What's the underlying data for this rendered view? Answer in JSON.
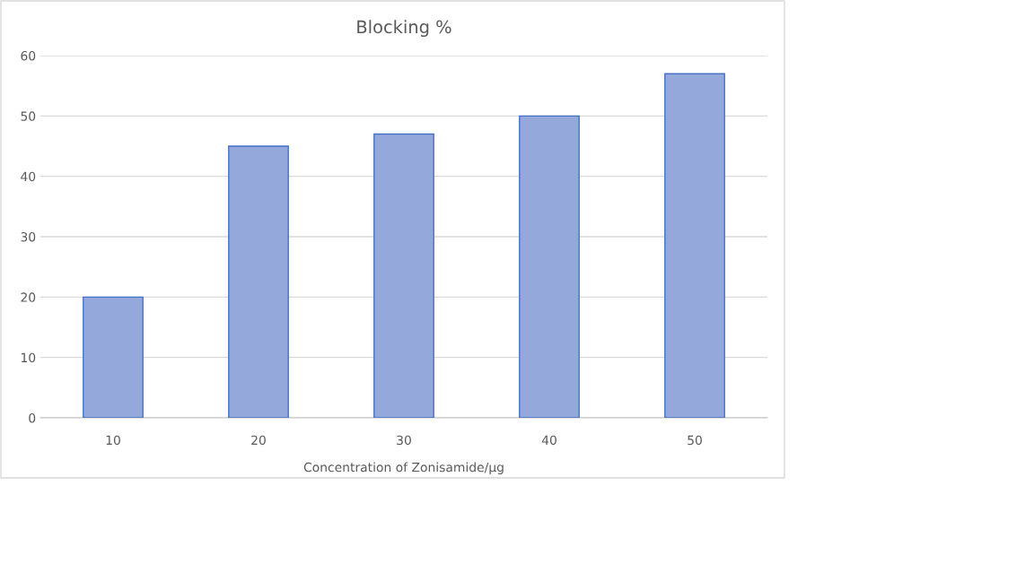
{
  "chart_data": {
    "type": "bar",
    "title": "Blocking %",
    "xlabel": "Concentration of Zonisamide/µg",
    "categories": [
      "10",
      "20",
      "30",
      "40",
      "50"
    ],
    "values": [
      20,
      45,
      47,
      50,
      57
    ],
    "color": "#94a8db",
    "ylim": [
      0,
      60
    ],
    "yticks": [
      0,
      10,
      20,
      30,
      40,
      50,
      60
    ],
    "grid": "y"
  }
}
